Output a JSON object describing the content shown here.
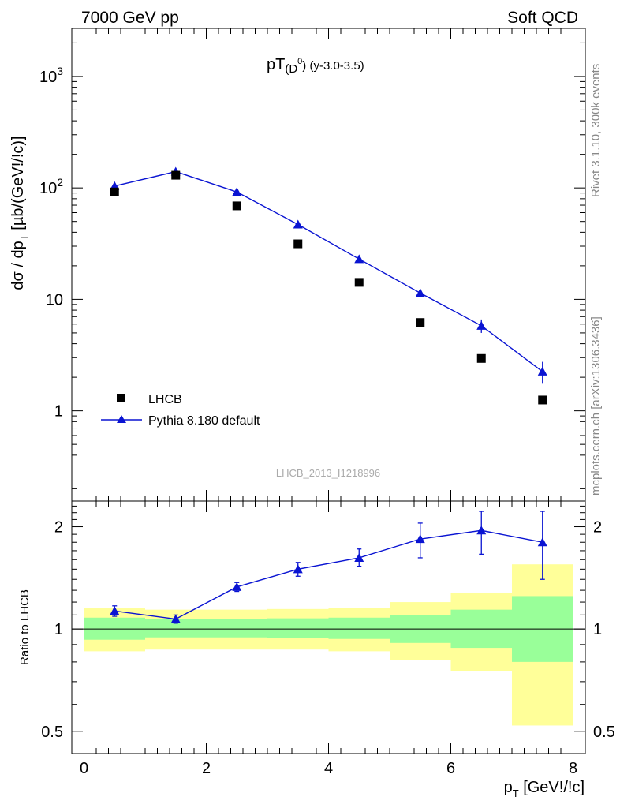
{
  "header": {
    "left": "7000 GeV pp",
    "right": "Soft QCD"
  },
  "side_labels": {
    "rivet": "Rivet 3.1.10,  300k events",
    "source": "mcplots.cern.ch [arXiv:1306.3436]"
  },
  "plot_title": {
    "main": "pT",
    "sub": "(D",
    "sup": "0",
    "close": ")",
    "range": "(y-3.0-3.5)"
  },
  "analysis_id": "LHCB_2013_I1218996",
  "colors": {
    "mc": "#0a14d2",
    "band_outer": "#ffff99",
    "band_inner": "#99ff99",
    "data": "#000000"
  },
  "chart_data": [
    {
      "type": "scatter",
      "name": "main",
      "ylabel": "dσ / dp_T [µb/(GeV!/!c)]",
      "yscale": "log",
      "xlim": [
        -0.2,
        8.2
      ],
      "ylim": [
        0.155,
        2700
      ],
      "ytick_labels": [
        "1",
        "10",
        "10^2",
        "10^3"
      ],
      "legend_position": "lower-left",
      "series": [
        {
          "name": "LHCB",
          "x": [
            0.5,
            1.5,
            2.5,
            3.5,
            4.5,
            5.5,
            6.5,
            7.5
          ],
          "y": [
            92,
            130,
            69,
            31.5,
            14.2,
            6.2,
            2.95,
            1.25
          ]
        },
        {
          "name": "Pythia 8.180 default",
          "x": [
            0.5,
            1.5,
            2.5,
            3.5,
            4.5,
            5.5,
            6.5,
            7.5
          ],
          "y": [
            104,
            140,
            92,
            47,
            23,
            11.4,
            5.8,
            2.25
          ],
          "y_err": [
            5,
            6,
            4,
            2,
            1.5,
            1.0,
            0.8,
            0.5
          ]
        }
      ]
    },
    {
      "type": "scatter",
      "name": "ratio",
      "ylabel": "Ratio to LHCB",
      "yscale": "log",
      "xlabel": "p_T [GeV!/!c]",
      "xlim": [
        -0.2,
        8.2
      ],
      "ylim": [
        0.43,
        2.38
      ],
      "xticks": [
        0,
        2,
        4,
        6,
        8
      ],
      "yticks": [
        0.5,
        1,
        2
      ],
      "bands": [
        {
          "x0": 0,
          "x1": 1,
          "inner": [
            0.93,
            1.08
          ],
          "outer": [
            0.86,
            1.15
          ]
        },
        {
          "x0": 1,
          "x1": 2,
          "inner": [
            0.945,
            1.07
          ],
          "outer": [
            0.87,
            1.14
          ]
        },
        {
          "x0": 2,
          "x1": 3,
          "inner": [
            0.945,
            1.07
          ],
          "outer": [
            0.87,
            1.14
          ]
        },
        {
          "x0": 3,
          "x1": 4,
          "inner": [
            0.94,
            1.075
          ],
          "outer": [
            0.87,
            1.145
          ]
        },
        {
          "x0": 4,
          "x1": 5,
          "inner": [
            0.935,
            1.08
          ],
          "outer": [
            0.86,
            1.155
          ]
        },
        {
          "x0": 5,
          "x1": 6,
          "inner": [
            0.91,
            1.1
          ],
          "outer": [
            0.81,
            1.2
          ]
        },
        {
          "x0": 6,
          "x1": 7,
          "inner": [
            0.88,
            1.14
          ],
          "outer": [
            0.75,
            1.28
          ]
        },
        {
          "x0": 7,
          "x1": 8,
          "inner": [
            0.8,
            1.25
          ],
          "outer": [
            0.52,
            1.55
          ]
        }
      ],
      "series": [
        {
          "name": "Pythia 8.180 default",
          "x": [
            0.5,
            1.5,
            2.5,
            3.5,
            4.5,
            5.5,
            6.5,
            7.5
          ],
          "y": [
            1.13,
            1.07,
            1.33,
            1.5,
            1.62,
            1.84,
            1.95,
            1.8
          ],
          "y_lo": [
            1.09,
            1.04,
            1.29,
            1.43,
            1.53,
            1.62,
            1.66,
            1.4
          ],
          "y_hi": [
            1.17,
            1.1,
            1.37,
            1.57,
            1.72,
            2.05,
            2.22,
            2.22
          ]
        }
      ]
    }
  ]
}
